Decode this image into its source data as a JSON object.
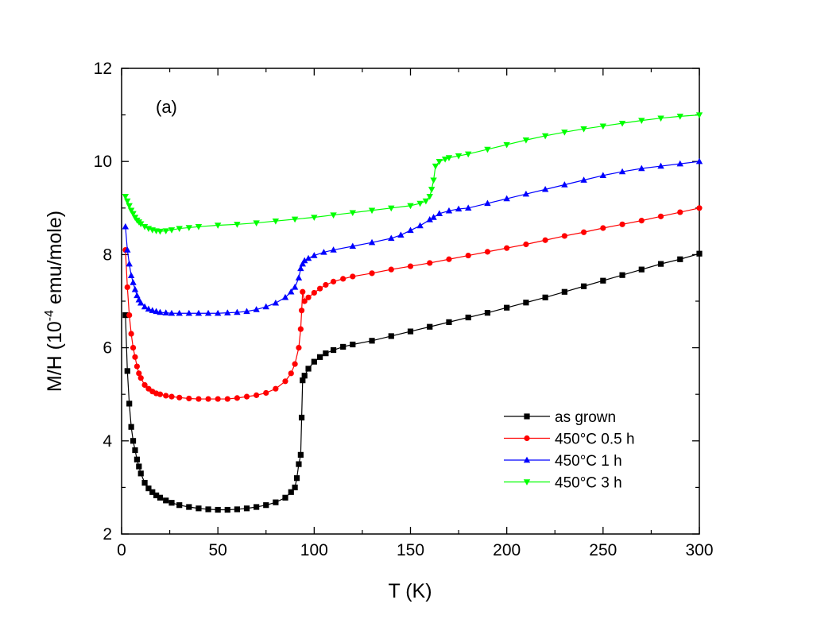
{
  "chart_data": {
    "type": "line",
    "annotation": "(a)",
    "xlabel": "T (K)",
    "ylabel_prefix": "M/H (10",
    "ylabel_exponent": "-4",
    "ylabel_suffix": " emu/mole)",
    "xlim": [
      0,
      300
    ],
    "ylim": [
      2,
      12
    ],
    "xticks": [
      0,
      50,
      100,
      150,
      200,
      250,
      300
    ],
    "yticks": [
      2,
      4,
      6,
      8,
      10,
      12
    ],
    "legend_position": "bottom-right",
    "series": [
      {
        "name": "as grown",
        "color": "#000000",
        "marker": "square",
        "x": [
          2,
          3,
          4,
          5,
          6,
          7,
          8,
          9,
          10,
          12,
          14,
          16,
          18,
          20,
          23,
          26,
          30,
          35,
          40,
          45,
          50,
          55,
          60,
          65,
          70,
          75,
          80,
          85,
          88,
          90,
          91,
          92,
          93,
          93.5,
          94,
          95,
          97,
          100,
          103,
          106,
          110,
          115,
          120,
          130,
          140,
          150,
          160,
          170,
          180,
          190,
          200,
          210,
          220,
          230,
          240,
          250,
          260,
          270,
          280,
          290,
          300
        ],
        "y": [
          6.7,
          5.5,
          4.8,
          4.3,
          4.0,
          3.8,
          3.6,
          3.45,
          3.3,
          3.1,
          2.98,
          2.9,
          2.83,
          2.78,
          2.72,
          2.67,
          2.62,
          2.58,
          2.55,
          2.53,
          2.52,
          2.52,
          2.53,
          2.55,
          2.58,
          2.62,
          2.68,
          2.78,
          2.9,
          3.0,
          3.2,
          3.5,
          3.7,
          4.5,
          5.3,
          5.4,
          5.55,
          5.7,
          5.8,
          5.88,
          5.95,
          6.02,
          6.07,
          6.15,
          6.25,
          6.35,
          6.45,
          6.55,
          6.65,
          6.75,
          6.86,
          6.97,
          7.08,
          7.2,
          7.32,
          7.44,
          7.56,
          7.68,
          7.8,
          7.9,
          8.02
        ]
      },
      {
        "name": "450°C 0.5 h",
        "color": "#ff0000",
        "marker": "circle",
        "x": [
          2,
          3,
          4,
          5,
          6,
          7,
          8,
          9,
          10,
          12,
          14,
          16,
          18,
          20,
          23,
          26,
          30,
          35,
          40,
          45,
          50,
          55,
          60,
          65,
          70,
          75,
          80,
          85,
          88,
          90,
          92,
          93,
          93.5,
          94,
          95,
          97,
          100,
          103,
          106,
          110,
          115,
          120,
          130,
          140,
          150,
          160,
          170,
          180,
          190,
          200,
          210,
          220,
          230,
          240,
          250,
          260,
          270,
          280,
          290,
          300
        ],
        "y": [
          8.1,
          7.3,
          6.7,
          6.3,
          6.0,
          5.8,
          5.6,
          5.45,
          5.35,
          5.2,
          5.12,
          5.06,
          5.02,
          5.0,
          4.97,
          4.95,
          4.93,
          4.91,
          4.9,
          4.9,
          4.9,
          4.9,
          4.92,
          4.95,
          4.98,
          5.03,
          5.12,
          5.28,
          5.45,
          5.65,
          6.0,
          6.4,
          6.8,
          7.2,
          7.0,
          7.08,
          7.18,
          7.27,
          7.35,
          7.42,
          7.48,
          7.53,
          7.6,
          7.68,
          7.75,
          7.82,
          7.9,
          7.98,
          8.06,
          8.14,
          8.22,
          8.31,
          8.4,
          8.48,
          8.57,
          8.65,
          8.73,
          8.82,
          8.91,
          9.0
        ]
      },
      {
        "name": "450°C 1 h",
        "color": "#0000ff",
        "marker": "triangle-up",
        "x": [
          2,
          3,
          4,
          5,
          6,
          7,
          8,
          9,
          10,
          12,
          14,
          16,
          18,
          20,
          23,
          26,
          30,
          35,
          40,
          45,
          50,
          55,
          60,
          65,
          70,
          75,
          80,
          85,
          88,
          90,
          92,
          93,
          94,
          95,
          97,
          100,
          105,
          110,
          120,
          130,
          140,
          145,
          150,
          155,
          160,
          162,
          165,
          170,
          175,
          180,
          190,
          200,
          210,
          220,
          230,
          240,
          250,
          260,
          270,
          280,
          290,
          300
        ],
        "y": [
          8.6,
          8.1,
          7.8,
          7.55,
          7.4,
          7.25,
          7.12,
          7.03,
          6.96,
          6.88,
          6.83,
          6.8,
          6.78,
          6.76,
          6.75,
          6.74,
          6.74,
          6.74,
          6.74,
          6.74,
          6.74,
          6.75,
          6.76,
          6.78,
          6.82,
          6.88,
          6.96,
          7.08,
          7.2,
          7.3,
          7.5,
          7.7,
          7.8,
          7.87,
          7.92,
          7.98,
          8.05,
          8.1,
          8.18,
          8.26,
          8.35,
          8.42,
          8.52,
          8.62,
          8.75,
          8.8,
          8.88,
          8.94,
          8.98,
          9.0,
          9.1,
          9.2,
          9.3,
          9.4,
          9.5,
          9.6,
          9.7,
          9.78,
          9.85,
          9.9,
          9.95,
          10.0
        ]
      },
      {
        "name": "450°C 3 h",
        "color": "#00ff00",
        "marker": "triangle-down",
        "x": [
          2,
          3,
          4,
          5,
          6,
          7,
          8,
          9,
          10,
          12,
          14,
          16,
          18,
          20,
          23,
          26,
          30,
          35,
          40,
          50,
          60,
          70,
          80,
          90,
          100,
          110,
          120,
          130,
          140,
          150,
          155,
          158,
          160,
          161,
          162,
          163,
          165,
          168,
          170,
          175,
          180,
          190,
          200,
          210,
          220,
          230,
          240,
          250,
          260,
          270,
          280,
          290,
          300
        ],
        "y": [
          9.25,
          9.15,
          9.05,
          8.95,
          8.88,
          8.8,
          8.74,
          8.7,
          8.66,
          8.6,
          8.56,
          8.53,
          8.51,
          8.5,
          8.51,
          8.53,
          8.56,
          8.58,
          8.6,
          8.63,
          8.65,
          8.68,
          8.72,
          8.76,
          8.8,
          8.85,
          8.9,
          8.95,
          9.0,
          9.05,
          9.1,
          9.15,
          9.25,
          9.4,
          9.6,
          9.9,
          10.0,
          10.05,
          10.08,
          10.12,
          10.16,
          10.26,
          10.36,
          10.46,
          10.55,
          10.63,
          10.7,
          10.76,
          10.82,
          10.88,
          10.93,
          10.97,
          11.0
        ]
      }
    ]
  }
}
